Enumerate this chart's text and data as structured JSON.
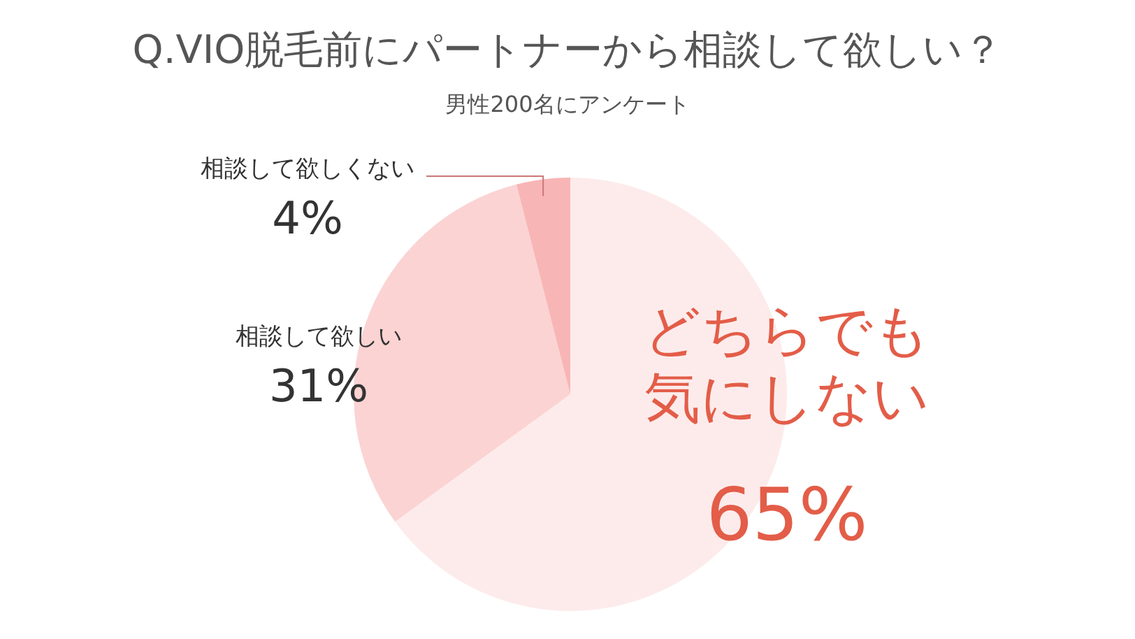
{
  "chart_data": {
    "type": "pie",
    "title": "Q.VIO脱毛前にパートナーから相談して欲しい？",
    "subtitle": "男性200名にアンケート",
    "categories": [
      "どちらでも気にしない",
      "相談して欲しい",
      "相談して欲しくない"
    ],
    "values": [
      65,
      31,
      4
    ],
    "value_labels": [
      "65%",
      "31%",
      "4%"
    ],
    "colors": [
      "#fdebeb",
      "#fbd3d3",
      "#f8b5b5"
    ]
  }
}
